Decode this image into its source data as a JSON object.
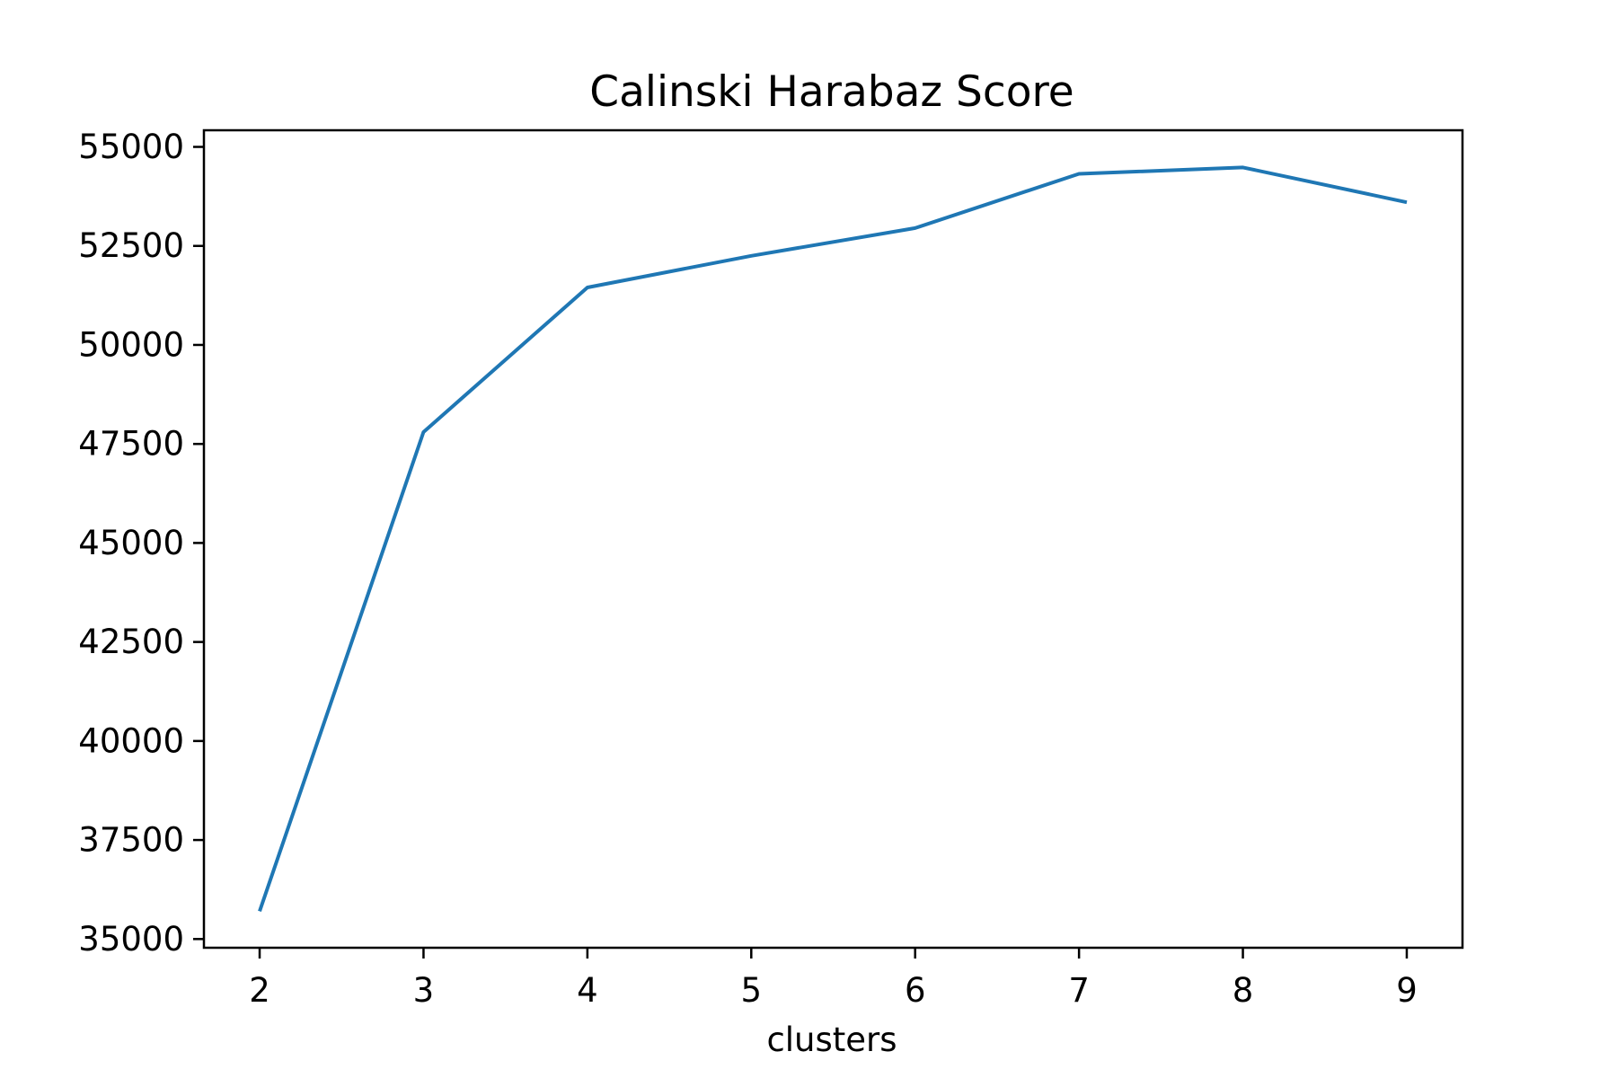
{
  "chart_data": {
    "type": "line",
    "title": "Calinski Harabaz Score",
    "xlabel": "clusters",
    "ylabel": "",
    "x": [
      2,
      3,
      4,
      5,
      6,
      7,
      8,
      9
    ],
    "series": [
      {
        "values": [
          35700,
          47800,
          51450,
          52250,
          52950,
          54320,
          54480,
          53600
        ]
      }
    ],
    "xticks": [
      2,
      3,
      4,
      5,
      6,
      7,
      8,
      9
    ],
    "yticks": [
      35000,
      37500,
      40000,
      42500,
      45000,
      47500,
      50000,
      52500,
      55000
    ],
    "xlim": [
      1.66,
      9.34
    ],
    "ylim": [
      34780,
      55420
    ],
    "grid": false,
    "line_color": "#1f77b4"
  }
}
